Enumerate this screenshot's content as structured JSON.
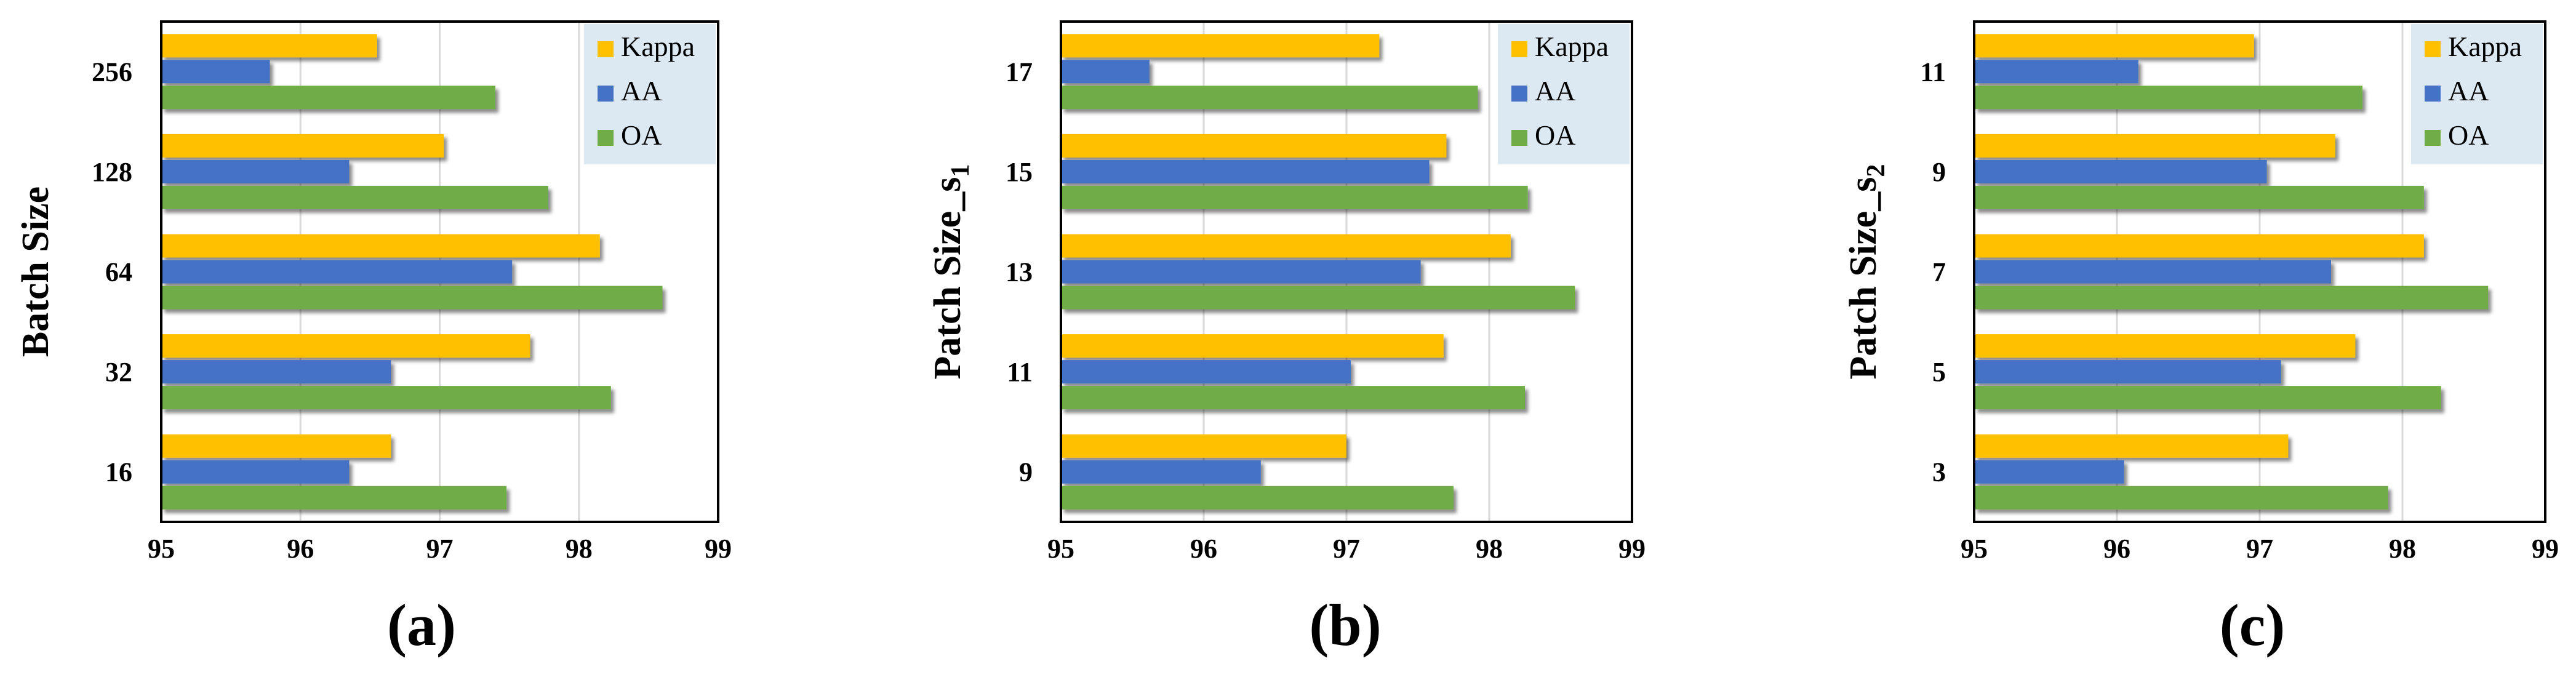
{
  "colors": {
    "Kappa": "#FFC000",
    "AA": "#4472C4",
    "OA": "#70AD47",
    "legend_bg": "#DCE9F3",
    "grid": "#D9D9D9"
  },
  "chart_data": [
    {
      "type": "bar",
      "orientation": "horizontal",
      "panel_label": "(a)",
      "ylabel": "Batch Size",
      "ylabel_sub": "",
      "xlim": [
        95,
        99
      ],
      "xticks": [
        "95",
        "96",
        "97",
        "98",
        "99"
      ],
      "categories": [
        "16",
        "32",
        "64",
        "128",
        "256"
      ],
      "legend": [
        "Kappa",
        "AA",
        "OA"
      ],
      "legend_position": "top-right",
      "series": [
        {
          "name": "Kappa",
          "values": [
            96.65,
            97.65,
            98.15,
            97.03,
            96.55
          ]
        },
        {
          "name": "AA",
          "values": [
            96.35,
            96.65,
            97.52,
            96.35,
            95.78
          ]
        },
        {
          "name": "OA",
          "values": [
            97.48,
            98.23,
            98.6,
            97.78,
            97.4
          ]
        }
      ]
    },
    {
      "type": "bar",
      "orientation": "horizontal",
      "panel_label": "(b)",
      "ylabel": "Patch Size_s",
      "ylabel_sub": "1",
      "xlim": [
        95,
        99
      ],
      "xticks": [
        "95",
        "96",
        "97",
        "98",
        "99"
      ],
      "categories": [
        "9",
        "11",
        "13",
        "15",
        "17"
      ],
      "legend": [
        "Kappa",
        "AA",
        "OA"
      ],
      "legend_position": "top-right",
      "series": [
        {
          "name": "Kappa",
          "values": [
            97.0,
            97.68,
            98.15,
            97.7,
            97.23
          ]
        },
        {
          "name": "AA",
          "values": [
            96.4,
            97.03,
            97.52,
            97.58,
            95.62
          ]
        },
        {
          "name": "OA",
          "values": [
            97.75,
            98.25,
            98.6,
            98.27,
            97.92
          ]
        }
      ]
    },
    {
      "type": "bar",
      "orientation": "horizontal",
      "panel_label": "(c)",
      "ylabel": "Patch Size_s",
      "ylabel_sub": "2",
      "xlim": [
        95,
        99
      ],
      "xticks": [
        "95",
        "96",
        "97",
        "98",
        "99"
      ],
      "categories": [
        "3",
        "5",
        "7",
        "9",
        "11"
      ],
      "legend": [
        "Kappa",
        "AA",
        "OA"
      ],
      "legend_position": "top-right",
      "series": [
        {
          "name": "Kappa",
          "values": [
            97.2,
            97.67,
            98.15,
            97.53,
            96.96
          ]
        },
        {
          "name": "AA",
          "values": [
            96.05,
            97.15,
            97.5,
            97.05,
            96.15
          ]
        },
        {
          "name": "OA",
          "values": [
            97.9,
            98.27,
            98.6,
            98.15,
            97.72
          ]
        }
      ]
    }
  ]
}
